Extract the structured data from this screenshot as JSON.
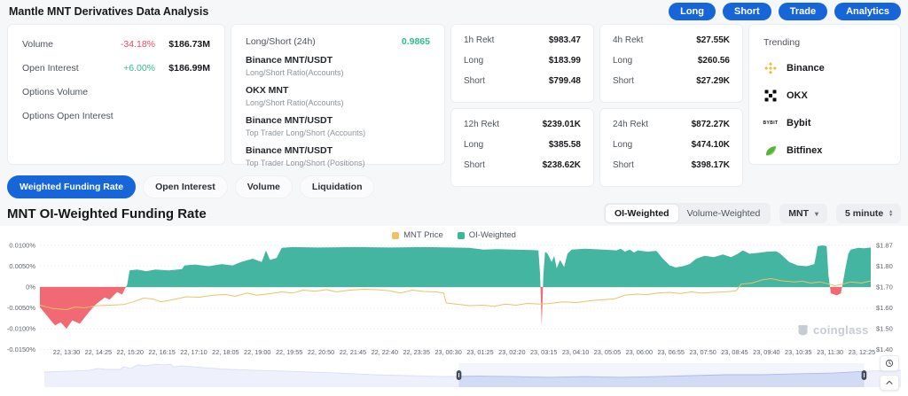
{
  "page": {
    "title": "Mantle MNT Derivatives Data Analysis"
  },
  "colors": {
    "accent": "#1666d9",
    "red": "#f2495c",
    "green": "#2dbd8f",
    "chart-yellow": "#eec168"
  },
  "header_buttons": [
    {
      "label": "Long"
    },
    {
      "label": "Short"
    },
    {
      "label": "Trade"
    },
    {
      "label": "Analytics"
    }
  ],
  "stats_card": {
    "rows": [
      {
        "label": "Volume",
        "change": "-34.18%",
        "value": "$186.73M"
      },
      {
        "label": "Open Interest",
        "change": "+6.00%",
        "value": "$186.99M"
      },
      {
        "label": "Options Volume"
      },
      {
        "label": "Options Open Interest"
      }
    ]
  },
  "longshort_card": {
    "title": "Long/Short (24h)",
    "value": "0.9865",
    "items": [
      {
        "name": "Binance MNT/USDT",
        "desc": "Long/Short Ratio(Accounts)"
      },
      {
        "name": "OKX MNT",
        "desc": "Long/Short Ratio(Accounts)"
      },
      {
        "name": "Binance MNT/USDT",
        "desc": "Top Trader Long/Short (Accounts)"
      },
      {
        "name": "Binance MNT/USDT",
        "desc": "Top Trader Long/Short (Positions)"
      }
    ]
  },
  "rekt_labels": {
    "long": "Long",
    "short": "Short"
  },
  "rekt_cards": [
    {
      "period": "1h Rekt",
      "total": "$983.47",
      "long": "$183.99",
      "short": "$799.48"
    },
    {
      "period": "4h Rekt",
      "total": "$27.55K",
      "long": "$260.56",
      "short": "$27.29K"
    },
    {
      "period": "12h Rekt",
      "total": "$239.01K",
      "long": "$385.58",
      "short": "$238.62K"
    },
    {
      "period": "24h Rekt",
      "total": "$872.27K",
      "long": "$474.10K",
      "short": "$398.17K"
    }
  ],
  "trending": {
    "title": "Trending",
    "exchanges": [
      {
        "name": "Binance",
        "icon": "binance-icon"
      },
      {
        "name": "OKX",
        "icon": "okx-icon"
      },
      {
        "name": "Bybit",
        "icon": "bybit-icon"
      },
      {
        "name": "Bitfinex",
        "icon": "bitfinex-icon"
      }
    ]
  },
  "tabs": [
    {
      "label": "Weighted Funding Rate",
      "active": true
    },
    {
      "label": "Open Interest",
      "active": false
    },
    {
      "label": "Volume",
      "active": false
    },
    {
      "label": "Liquidation",
      "active": false
    }
  ],
  "chart_section": {
    "title": "MNT OI-Weighted Funding Rate",
    "toggle": [
      "OI-Weighted",
      "Volume-Weighted"
    ],
    "toggle_active": "OI-Weighted",
    "symbol_select": "MNT",
    "interval_select": "5 minute"
  },
  "watermark": "coinglass",
  "chart_data": {
    "type": "area",
    "title": "MNT OI-Weighted Funding Rate",
    "legend": [
      "MNT Price",
      "OI-Weighted"
    ],
    "colors": {
      "price_line": "#eec168",
      "positive_area": "#44b5a0",
      "negative_area": "#f06973",
      "grid": "#ececf1",
      "zero_line": "#d9dbe0",
      "axis_text": "#5f646c",
      "nav_fill": "#dce3f7",
      "nav_line": "#b3bfee",
      "nav_handle": "#454c61"
    },
    "left_axis": {
      "unit": "%",
      "min": -0.015,
      "max": 0.01,
      "labels": [
        "0.0100%",
        "0.0050%",
        "0%",
        "-0.0050%",
        "-0.0100%",
        "-0.0150%"
      ]
    },
    "right_axis": {
      "unit": "USD",
      "labels": [
        "$1.87",
        "$1.80",
        "$1.70",
        "$1.60",
        "$1.50",
        "$1.40"
      ]
    },
    "x_ticks": [
      "22, 13:30",
      "22, 14:25",
      "22, 15:20",
      "22, 16:15",
      "22, 17:10",
      "22, 18:05",
      "22, 19:00",
      "22, 19:55",
      "22, 20:50",
      "22, 21:45",
      "22, 22:40",
      "22, 23:35",
      "23, 00:30",
      "23, 01:25",
      "23, 02:20",
      "23, 03:15",
      "23, 04:10",
      "23, 05:05",
      "23, 06:00",
      "23, 06:55",
      "23, 07:50",
      "23, 08:45",
      "23, 09:40",
      "23, 10:35",
      "23, 11:30",
      "23, 12:25"
    ],
    "series": [
      {
        "name": "OI-Weighted",
        "type": "area",
        "unit": "%",
        "points": [
          [
            0.0,
            -0.0048
          ],
          [
            0.011,
            -0.0075
          ],
          [
            0.018,
            -0.0092
          ],
          [
            0.025,
            -0.0085
          ],
          [
            0.032,
            -0.01
          ],
          [
            0.039,
            -0.008
          ],
          [
            0.048,
            -0.0088
          ],
          [
            0.059,
            -0.006
          ],
          [
            0.067,
            -0.0042
          ],
          [
            0.078,
            -0.0025
          ],
          [
            0.084,
            -0.003
          ],
          [
            0.093,
            -0.0012
          ],
          [
            0.099,
            -0.0018
          ],
          [
            0.102,
            -0.0005
          ],
          [
            0.105,
            0.0005
          ],
          [
            0.108,
            0.004
          ],
          [
            0.117,
            0.0042
          ],
          [
            0.128,
            0.0038
          ],
          [
            0.139,
            0.0042
          ],
          [
            0.155,
            0.004
          ],
          [
            0.171,
            0.0043
          ],
          [
            0.174,
            0.0052
          ],
          [
            0.187,
            0.0054
          ],
          [
            0.203,
            0.005
          ],
          [
            0.219,
            0.0055
          ],
          [
            0.232,
            0.0052
          ],
          [
            0.242,
            0.006
          ],
          [
            0.256,
            0.0068
          ],
          [
            0.267,
            0.006
          ],
          [
            0.272,
            0.0088
          ],
          [
            0.277,
            0.0065
          ],
          [
            0.285,
            0.007
          ],
          [
            0.291,
            0.0094
          ],
          [
            0.304,
            0.0096
          ],
          [
            0.336,
            0.0095
          ],
          [
            0.379,
            0.0096
          ],
          [
            0.421,
            0.0095
          ],
          [
            0.464,
            0.0096
          ],
          [
            0.496,
            0.0095
          ],
          [
            0.517,
            0.0094
          ],
          [
            0.534,
            0.009
          ],
          [
            0.55,
            0.0091
          ],
          [
            0.571,
            0.009
          ],
          [
            0.592,
            0.0089
          ],
          [
            0.6,
            0.0088
          ],
          [
            0.602,
            0.003
          ],
          [
            0.604,
            -0.0094
          ],
          [
            0.606,
            0.003
          ],
          [
            0.608,
            0.0085
          ],
          [
            0.611,
            0.008
          ],
          [
            0.616,
            0.006
          ],
          [
            0.619,
            0.0075
          ],
          [
            0.622,
            0.0045
          ],
          [
            0.626,
            0.0065
          ],
          [
            0.631,
            0.0048
          ],
          [
            0.635,
            0.008
          ],
          [
            0.64,
            0.009
          ],
          [
            0.656,
            0.0092
          ],
          [
            0.678,
            0.009
          ],
          [
            0.694,
            0.0088
          ],
          [
            0.699,
            0.0092
          ],
          [
            0.704,
            0.0085
          ],
          [
            0.71,
            0.009
          ],
          [
            0.715,
            0.0083
          ],
          [
            0.72,
            0.0088
          ],
          [
            0.731,
            0.0085
          ],
          [
            0.742,
            0.0087
          ],
          [
            0.749,
            0.007
          ],
          [
            0.758,
            0.0052
          ],
          [
            0.765,
            0.0047
          ],
          [
            0.774,
            0.005
          ],
          [
            0.782,
            0.0055
          ],
          [
            0.79,
            0.0068
          ],
          [
            0.8,
            0.0075
          ],
          [
            0.811,
            0.0072
          ],
          [
            0.822,
            0.0078
          ],
          [
            0.832,
            0.0072
          ],
          [
            0.84,
            0.008
          ],
          [
            0.846,
            0.0088
          ],
          [
            0.854,
            0.008
          ],
          [
            0.864,
            0.0082
          ],
          [
            0.875,
            0.0085
          ],
          [
            0.886,
            0.0086
          ],
          [
            0.891,
            0.008
          ],
          [
            0.902,
            0.006
          ],
          [
            0.912,
            0.0052
          ],
          [
            0.923,
            0.005
          ],
          [
            0.932,
            0.0055
          ],
          [
            0.934,
            0.0075
          ],
          [
            0.936,
            0.0098
          ],
          [
            0.942,
            0.01
          ],
          [
            0.947,
            0.0098
          ],
          [
            0.949,
            0.003
          ],
          [
            0.952,
            -0.0015
          ],
          [
            0.959,
            -0.002
          ],
          [
            0.964,
            -0.0015
          ],
          [
            0.966,
            0.0005
          ],
          [
            0.969,
            0.004
          ],
          [
            0.973,
            0.008
          ],
          [
            0.976,
            0.009
          ],
          [
            0.985,
            0.0094
          ],
          [
            0.992,
            0.0093
          ],
          [
            1.0,
            0.0095
          ]
        ]
      },
      {
        "name": "MNT Price",
        "type": "line",
        "unit": "USD",
        "points": [
          [
            0.0,
            1.6
          ],
          [
            0.016,
            1.585
          ],
          [
            0.032,
            1.58
          ],
          [
            0.043,
            1.592
          ],
          [
            0.053,
            1.588
          ],
          [
            0.069,
            1.598
          ],
          [
            0.085,
            1.6
          ],
          [
            0.101,
            1.603
          ],
          [
            0.112,
            1.615
          ],
          [
            0.125,
            1.632
          ],
          [
            0.136,
            1.628
          ],
          [
            0.146,
            1.615
          ],
          [
            0.16,
            1.625
          ],
          [
            0.176,
            1.638
          ],
          [
            0.192,
            1.636
          ],
          [
            0.208,
            1.645
          ],
          [
            0.224,
            1.648
          ],
          [
            0.235,
            1.64
          ],
          [
            0.249,
            1.655
          ],
          [
            0.261,
            1.645
          ],
          [
            0.277,
            1.652
          ],
          [
            0.291,
            1.66
          ],
          [
            0.304,
            1.655
          ],
          [
            0.317,
            1.668
          ],
          [
            0.331,
            1.663
          ],
          [
            0.345,
            1.67
          ],
          [
            0.357,
            1.66
          ],
          [
            0.373,
            1.668
          ],
          [
            0.39,
            1.672
          ],
          [
            0.406,
            1.67
          ],
          [
            0.421,
            1.665
          ],
          [
            0.434,
            1.655
          ],
          [
            0.448,
            1.668
          ],
          [
            0.462,
            1.662
          ],
          [
            0.477,
            1.66
          ],
          [
            0.486,
            1.655
          ],
          [
            0.489,
            1.61
          ],
          [
            0.501,
            1.605
          ],
          [
            0.517,
            1.598
          ],
          [
            0.534,
            1.6
          ],
          [
            0.547,
            1.595
          ],
          [
            0.56,
            1.605
          ],
          [
            0.573,
            1.6
          ],
          [
            0.587,
            1.608
          ],
          [
            0.603,
            1.605
          ],
          [
            0.614,
            1.608
          ],
          [
            0.63,
            1.615
          ],
          [
            0.646,
            1.612
          ],
          [
            0.662,
            1.62
          ],
          [
            0.678,
            1.625
          ],
          [
            0.691,
            1.628
          ],
          [
            0.704,
            1.645
          ],
          [
            0.718,
            1.65
          ],
          [
            0.731,
            1.648
          ],
          [
            0.744,
            1.655
          ],
          [
            0.758,
            1.658
          ],
          [
            0.771,
            1.653
          ],
          [
            0.784,
            1.66
          ],
          [
            0.797,
            1.655
          ],
          [
            0.811,
            1.658
          ],
          [
            0.825,
            1.66
          ],
          [
            0.838,
            1.665
          ],
          [
            0.844,
            1.695
          ],
          [
            0.857,
            1.7
          ],
          [
            0.87,
            1.715
          ],
          [
            0.88,
            1.72
          ],
          [
            0.893,
            1.71
          ],
          [
            0.907,
            1.705
          ],
          [
            0.918,
            1.708
          ],
          [
            0.928,
            1.7
          ],
          [
            0.939,
            1.705
          ],
          [
            0.95,
            1.695
          ],
          [
            0.957,
            1.688
          ],
          [
            0.966,
            1.695
          ],
          [
            0.976,
            1.705
          ],
          [
            0.989,
            1.7
          ],
          [
            1.0,
            1.71
          ]
        ]
      }
    ],
    "navigator": {
      "selection": [
        0.484,
        0.957
      ],
      "points": [
        [
          0.0,
          0.63
        ],
        [
          0.031,
          0.67
        ],
        [
          0.052,
          0.7
        ],
        [
          0.062,
          0.78
        ],
        [
          0.072,
          0.74
        ],
        [
          0.088,
          0.74
        ],
        [
          0.093,
          0.85
        ],
        [
          0.101,
          0.78
        ],
        [
          0.109,
          0.93
        ],
        [
          0.119,
          0.89
        ],
        [
          0.129,
          0.96
        ],
        [
          0.14,
          0.93
        ],
        [
          0.147,
          0.96
        ],
        [
          0.151,
          0.85
        ],
        [
          0.16,
          0.89
        ],
        [
          0.186,
          0.81
        ],
        [
          0.217,
          0.74
        ],
        [
          0.248,
          0.7
        ],
        [
          0.28,
          0.67
        ],
        [
          0.311,
          0.63
        ],
        [
          0.342,
          0.59
        ],
        [
          0.383,
          0.52
        ],
        [
          0.424,
          0.48
        ],
        [
          0.466,
          0.44
        ],
        [
          0.507,
          0.46
        ],
        [
          0.549,
          0.44
        ],
        [
          0.59,
          0.41
        ],
        [
          0.631,
          0.44
        ],
        [
          0.673,
          0.41
        ],
        [
          0.714,
          0.44
        ],
        [
          0.756,
          0.48
        ],
        [
          0.797,
          0.52
        ],
        [
          0.838,
          0.52
        ],
        [
          0.88,
          0.56
        ],
        [
          0.921,
          0.59
        ],
        [
          0.963,
          0.67
        ],
        [
          1.0,
          0.7
        ]
      ]
    }
  }
}
